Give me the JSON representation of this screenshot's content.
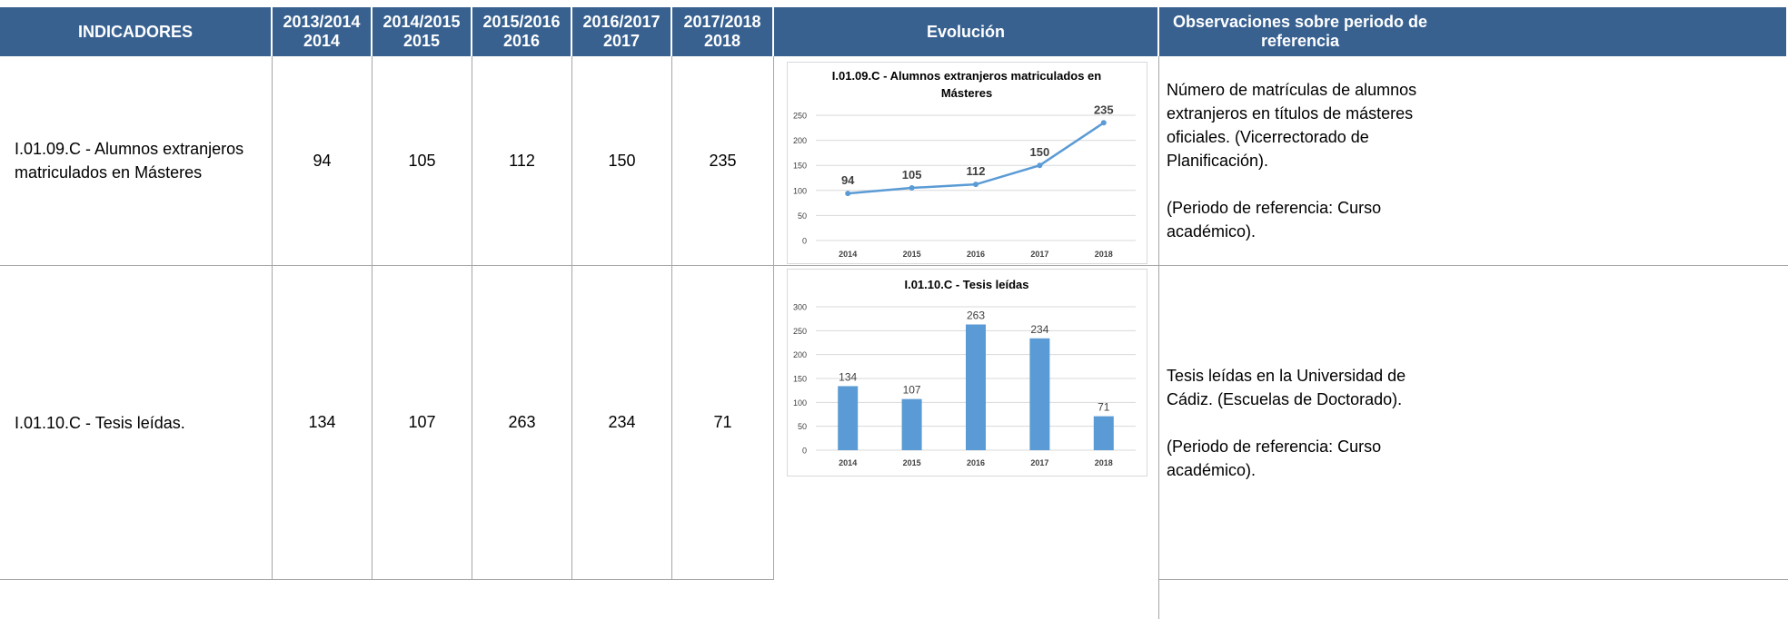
{
  "table": {
    "header": [
      [
        "INDICADORES"
      ],
      [
        "2013/2014",
        "2014"
      ],
      [
        "2014/2015",
        "2015"
      ],
      [
        "2015/2016",
        "2016"
      ],
      [
        "2016/2017",
        "2017"
      ],
      [
        "2017/2018",
        "2018"
      ],
      [
        "Evolución"
      ],
      [
        "Observaciones sobre periodo de referencia"
      ]
    ],
    "rows": [
      {
        "indicator": "I.01.09.C - Alumnos extranjeros matriculados en Másteres",
        "values": [
          94,
          105,
          112,
          150,
          235
        ],
        "chart": {
          "type": "line",
          "title": "I.01.09.C - Alumnos extranjeros matriculados en Másteres",
          "categories": [
            "2014",
            "2015",
            "2016",
            "2017",
            "2018"
          ],
          "values": [
            94,
            105,
            112,
            150,
            235
          ],
          "color": "#5b9bd5",
          "ylim": [
            0,
            250
          ],
          "yticks": [
            0,
            50,
            100,
            150,
            200,
            250
          ],
          "grid": true
        },
        "notes": [
          "Número de matrículas de alumnos extranjeros en títulos de másteres oficiales. (Vicerrectorado de Planificación).",
          "(Periodo de referencia: Curso académico)."
        ]
      },
      {
        "indicator": "I.01.10.C - Tesis leídas.",
        "values": [
          134,
          107,
          263,
          234,
          71
        ],
        "chart": {
          "type": "bar",
          "title": "I.01.10.C - Tesis leídas",
          "categories": [
            "2014",
            "2015",
            "2016",
            "2017",
            "2018"
          ],
          "values": [
            134,
            107,
            263,
            234,
            71
          ],
          "color": "#5b9bd5",
          "ylim": [
            0,
            300
          ],
          "yticks": [
            0,
            50,
            100,
            150,
            200,
            250,
            300
          ],
          "grid": true
        },
        "notes": [
          "Tesis leídas en la Universidad de Cádiz. (Escuelas de Doctorado).",
          "(Periodo de referencia: Curso académico)."
        ]
      }
    ]
  }
}
